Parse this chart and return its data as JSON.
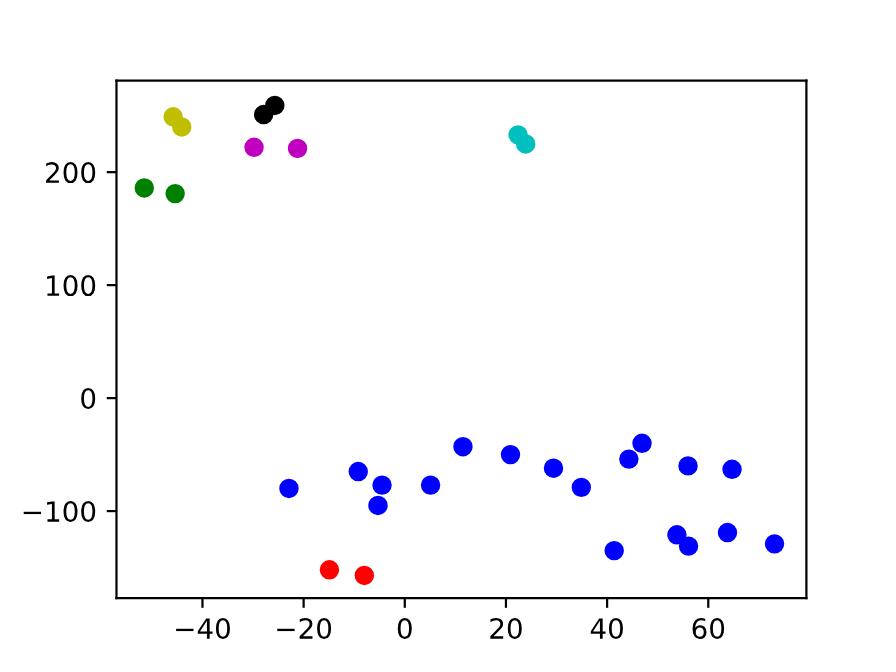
{
  "chart_data": {
    "type": "scatter",
    "marker": "circle",
    "grid": false,
    "legend": false,
    "xlim": [
      -57,
      79.4
    ],
    "ylim": [
      -177,
      281
    ],
    "xticks": [
      {
        "value": -40,
        "label": "−40"
      },
      {
        "value": -20,
        "label": "−20"
      },
      0,
      20,
      40,
      60
    ],
    "yticks": [
      {
        "value": -100,
        "label": "−100"
      },
      0,
      100,
      200
    ],
    "series": [
      {
        "color": "#008000",
        "x": [
          -51.5,
          -45.4
        ],
        "values": [
          186,
          181
        ]
      },
      {
        "color": "#bfbf00",
        "x": [
          -45.8,
          -44.1
        ],
        "values": [
          249,
          240
        ]
      },
      {
        "color": "#000000",
        "x": [
          -27.9,
          -25.7
        ],
        "values": [
          251,
          259
        ]
      },
      {
        "color": "#bf00bf",
        "x": [
          -29.8,
          -21.2
        ],
        "values": [
          222,
          221
        ]
      },
      {
        "color": "#00bfbf",
        "x": [
          22.4,
          23.9
        ],
        "values": [
          233,
          225
        ]
      },
      {
        "color": "#ff0000",
        "x": [
          -14.9,
          -8.0
        ],
        "values": [
          -152,
          -157
        ]
      },
      {
        "color": "#0000ff",
        "x": [
          -22.9,
          -9.2,
          -4.5,
          -5.3,
          5.1,
          11.5,
          20.9,
          29.4,
          34.9,
          41.4,
          44.3,
          46.9,
          53.8,
          56.0,
          56.1,
          63.8,
          64.7,
          73.1
        ],
        "values": [
          -80,
          -65,
          -77,
          -95,
          -77,
          -43,
          -50,
          -62,
          -79,
          -135,
          -54,
          -40,
          -121,
          -60,
          -131,
          -119,
          -63,
          -129
        ]
      }
    ]
  }
}
